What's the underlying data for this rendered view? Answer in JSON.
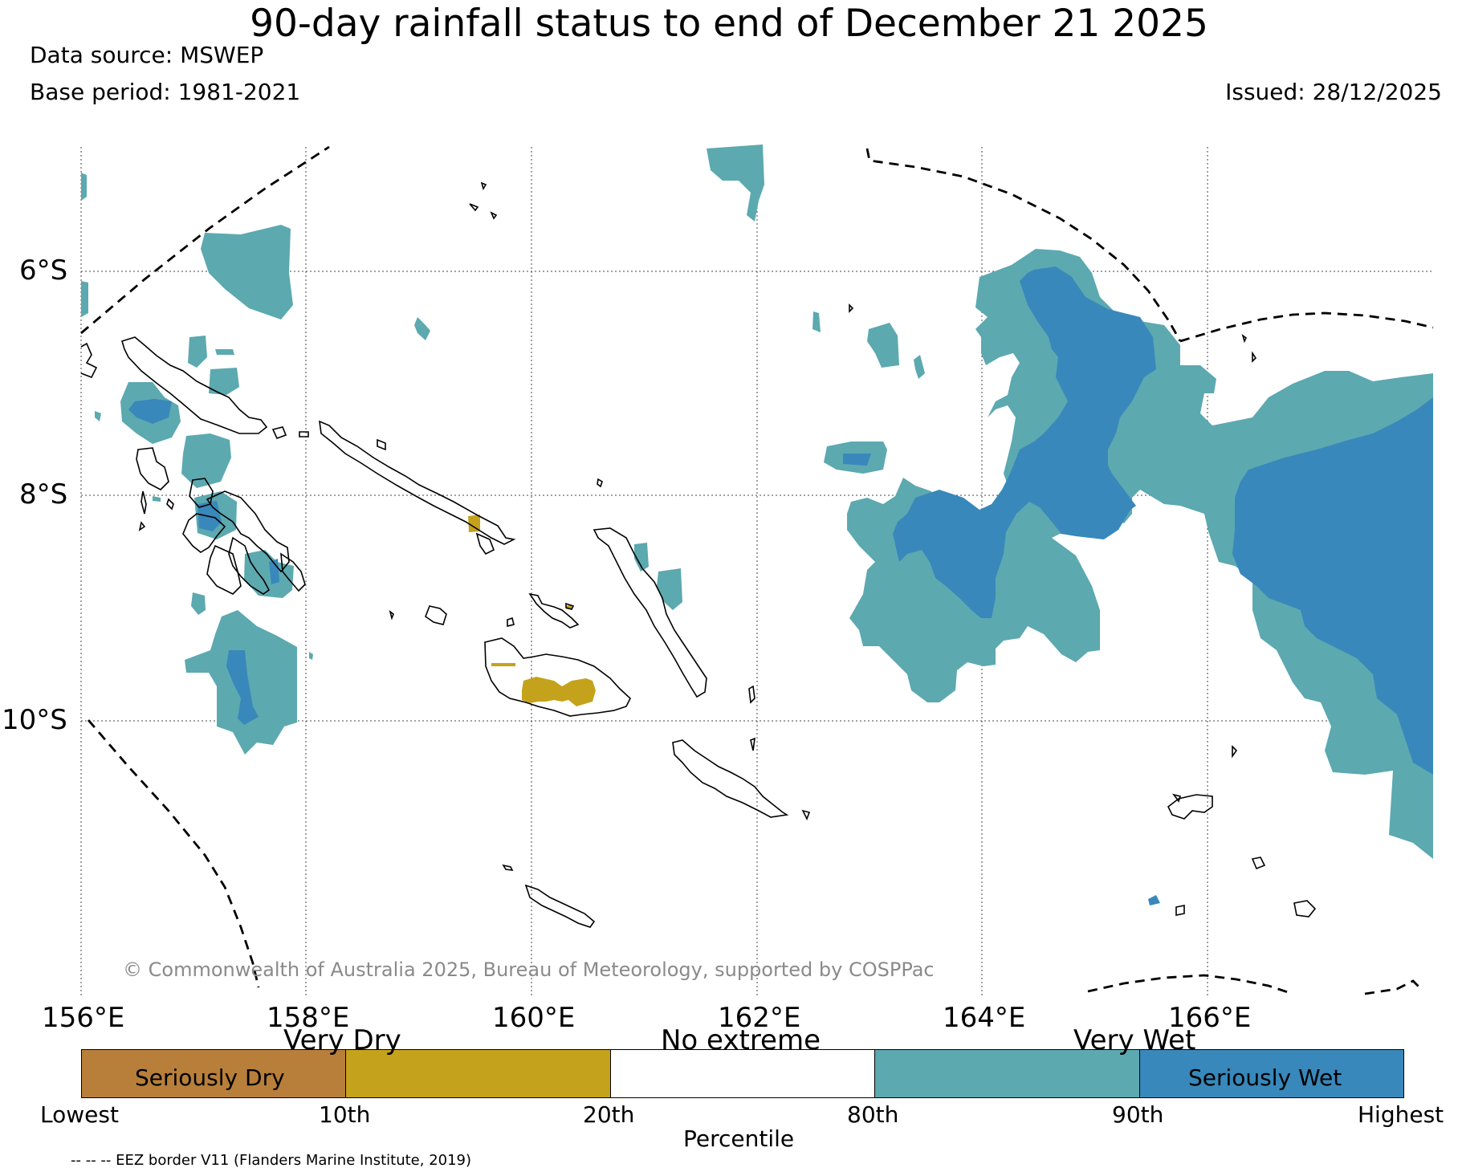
{
  "header": {
    "title": "90-day rainfall status to end of December 21 2025",
    "data_source": "Data source: MSWEP",
    "base_period": "Base period: 1981-2021",
    "issued": "Issued: 28/12/2025"
  },
  "map": {
    "longitude_labels": [
      "156°E",
      "158°E",
      "160°E",
      "162°E",
      "164°E",
      "166°E"
    ],
    "latitude_labels": [
      "6°S",
      "8°S",
      "10°S"
    ],
    "copyright": "© Commonwealth of Australia 2025, Bureau of Meteorology, supported by COSPPac",
    "colors": {
      "seriously_dry": "#b87f3a",
      "very_dry": "#c4a21c",
      "no_extreme": "#ffffff",
      "very_wet": "#5ca9b0",
      "seriously_wet": "#3888bb"
    }
  },
  "colorbar": {
    "top_labels": [
      "Very Dry",
      "No extreme",
      "Very Wet"
    ],
    "inner_labels": [
      "Seriously Dry",
      "Seriously Wet"
    ],
    "ticks": [
      "Lowest",
      "10th",
      "20th",
      "80th",
      "90th",
      "Highest"
    ],
    "axis_label": "Percentile",
    "segment_colors": [
      "#b87f3a",
      "#c4a21c",
      "#ffffff",
      "#5ca9b0",
      "#3888bb"
    ]
  },
  "footer": {
    "eez_note": "-- -- -- EEZ border V11 (Flanders Marine Institute, 2019)"
  }
}
